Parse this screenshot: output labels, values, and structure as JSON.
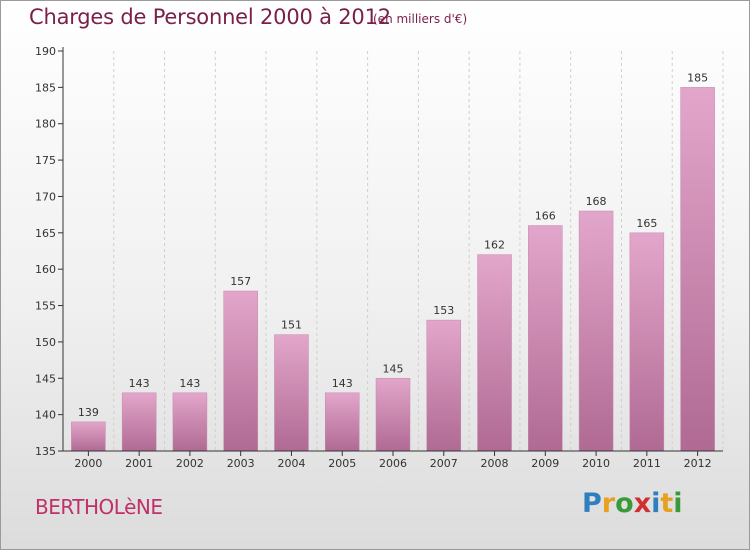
{
  "header": {
    "title": "Charges de Personnel 2000 à 2012",
    "unit": "(en milliers d'€)"
  },
  "footer": {
    "town": "BERTHOLèNE",
    "logo_letters": [
      "P",
      "r",
      "o",
      "x",
      "i",
      "t",
      "i"
    ],
    "logo_colors": [
      "#2e7fc0",
      "#e8a020",
      "#3a9a3a",
      "#d03030",
      "#2e7fc0",
      "#e8a020",
      "#3a9a3a"
    ]
  },
  "colors": {
    "bar_top": "#e3a6cb",
    "bar_bottom": "#b06a93",
    "axis": "#333333",
    "grid": "#cfcfcf"
  },
  "chart_data": {
    "type": "bar",
    "title": "Charges de Personnel 2000 à 2012",
    "subtitle": "(en milliers d'€)",
    "xlabel": "",
    "ylabel": "",
    "categories": [
      "2000",
      "2001",
      "2002",
      "2003",
      "2004",
      "2005",
      "2006",
      "2007",
      "2008",
      "2009",
      "2010",
      "2011",
      "2012"
    ],
    "values": [
      139,
      143,
      143,
      157,
      151,
      143,
      145,
      153,
      162,
      166,
      168,
      165,
      185
    ],
    "ylim": [
      135,
      190
    ],
    "yticks": [
      135,
      140,
      145,
      150,
      155,
      160,
      165,
      170,
      175,
      180,
      185,
      190
    ],
    "grid": "vertical dashed",
    "legend": "none"
  }
}
